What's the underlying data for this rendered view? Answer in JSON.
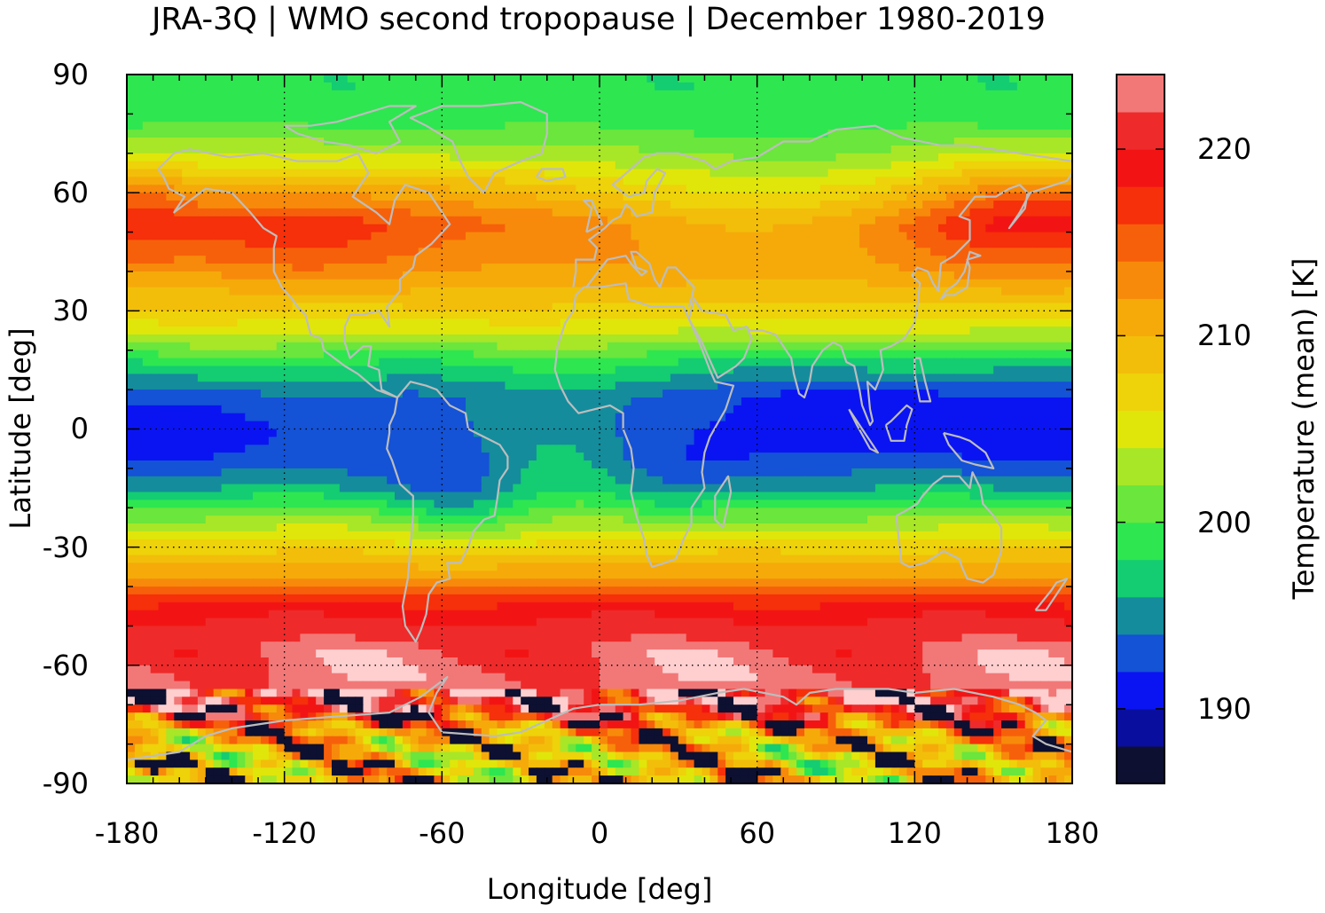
{
  "title": "JRA-3Q | WMO second tropopause | December 1980-2019",
  "chart_data": {
    "type": "heatmap",
    "title": "JRA-3Q | WMO second tropopause | December 1980-2019",
    "xlabel": "Longitude [deg]",
    "ylabel": "Latitude [deg]",
    "colorbar_label": "Temperature (mean) [K]",
    "xlim": [
      -180,
      180
    ],
    "ylim": [
      -90,
      90
    ],
    "xticks": [
      "-180",
      "-120",
      "-60",
      "0",
      "60",
      "120",
      "180"
    ],
    "yticks": [
      "90",
      "60",
      "30",
      "0",
      "-30",
      "-60",
      "-90"
    ],
    "colorbar_ticks": [
      "220",
      "210",
      "200",
      "190"
    ],
    "colorbar_range": [
      186,
      224
    ],
    "colorbar_levels": [
      186,
      188,
      190,
      192,
      194,
      196,
      198,
      200,
      202,
      204,
      206,
      208,
      210,
      212,
      214,
      216,
      218,
      220,
      222,
      224
    ],
    "colorbar_colors": [
      "#0d1030",
      "#0a0e9e",
      "#0a14f2",
      "#1452d6",
      "#148c9c",
      "#14cc72",
      "#2ee650",
      "#6ae63c",
      "#a8e628",
      "#e0e60a",
      "#eed20a",
      "#f2be0a",
      "#f5aa0a",
      "#f78a0a",
      "#f7600a",
      "#f5300a",
      "#f21414",
      "#ef2a2a",
      "#f27878",
      "#ffcfcf"
    ],
    "grid": true,
    "coastlines": true,
    "zonal_mean_profile": [
      {
        "lat": 87,
        "value": 198.6
      },
      {
        "lat": 78,
        "value": 199.4
      },
      {
        "lat": 70,
        "value": 203
      },
      {
        "lat": 62,
        "value": 208
      },
      {
        "lat": 52,
        "value": 213
      },
      {
        "lat": 42,
        "value": 212
      },
      {
        "lat": 32,
        "value": 208.4
      },
      {
        "lat": 24,
        "value": 204
      },
      {
        "lat": 17,
        "value": 198.4
      },
      {
        "lat": 8,
        "value": 193.4
      },
      {
        "lat": 0,
        "value": 192.6
      },
      {
        "lat": -8,
        "value": 193
      },
      {
        "lat": -15,
        "value": 196
      },
      {
        "lat": -22,
        "value": 201.6
      },
      {
        "lat": -30,
        "value": 207.4
      },
      {
        "lat": -38,
        "value": 212.4
      },
      {
        "lat": -46,
        "value": 219.2
      },
      {
        "lat": -54,
        "value": 221.8
      },
      {
        "lat": -62,
        "value": 223
      },
      {
        "lat": -70,
        "value": 222.4
      },
      {
        "lat": -77,
        "value": 212
      },
      {
        "lat": -84,
        "value": 208
      },
      {
        "lat": -89,
        "value": 210
      }
    ]
  }
}
